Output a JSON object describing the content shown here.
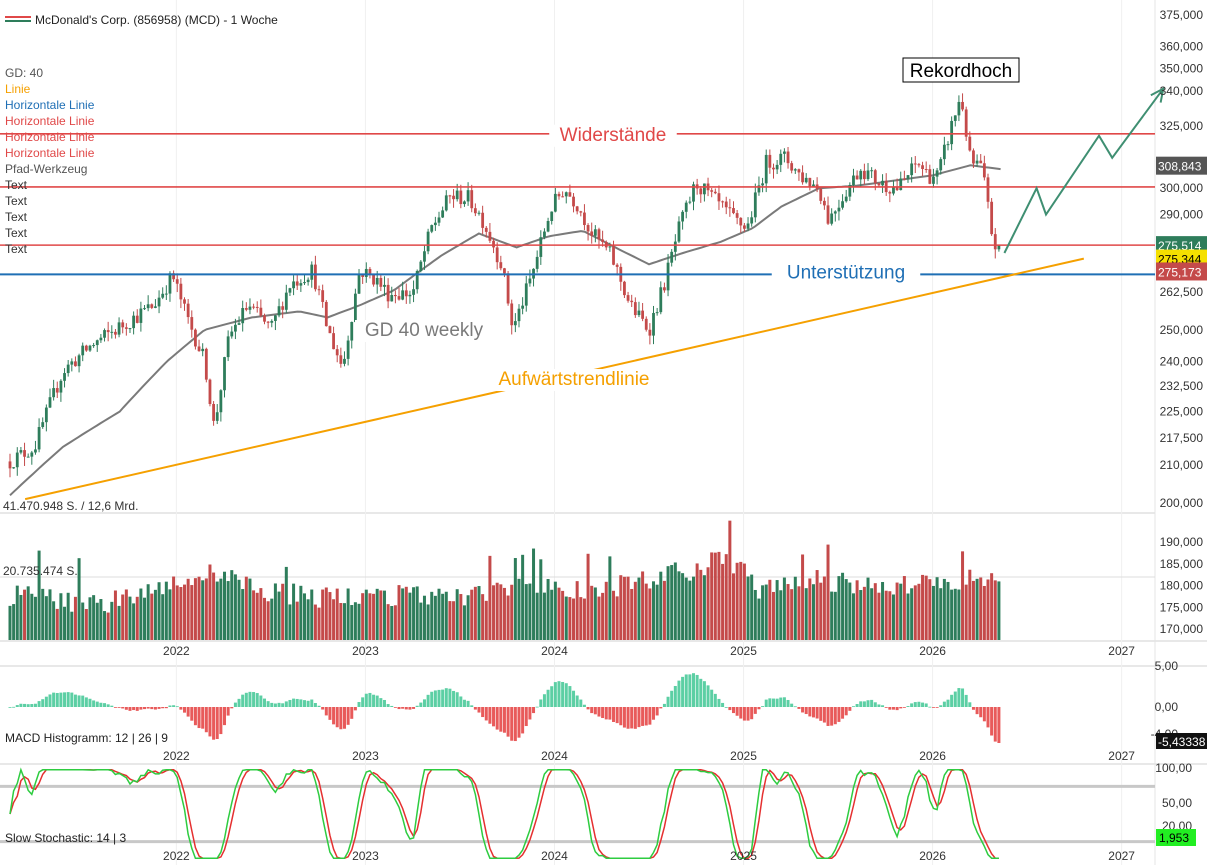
{
  "title": "McDonald's Corp. (856958) (MCD) - 1 Woche",
  "legend": [
    {
      "label": "GD: 40",
      "color": "#555555"
    },
    {
      "label": "Linie",
      "color": "#f5a000"
    },
    {
      "label": "Horizontale Linie",
      "color": "#1f6fb5"
    },
    {
      "label": "Horizontale Linie",
      "color": "#e04848"
    },
    {
      "label": "Horizontale Linie",
      "color": "#e04848"
    },
    {
      "label": "Horizontale Linie",
      "color": "#e04848"
    },
    {
      "label": "Pfad-Werkzeug",
      "color": "#555555"
    },
    {
      "label": "Text",
      "color": "#333333"
    },
    {
      "label": "Text",
      "color": "#333333"
    },
    {
      "label": "Text",
      "color": "#333333"
    },
    {
      "label": "Text",
      "color": "#333333"
    },
    {
      "label": "Text",
      "color": "#333333"
    }
  ],
  "colors": {
    "up": "#2e7d5b",
    "down": "#c44a4a",
    "ma": "#7a7a7a",
    "trend": "#f5a000",
    "support": "#1f6fb5",
    "resistance": "#e04848",
    "path": "#3f8f72",
    "hist_pos": "#5ccfa4",
    "hist_neg": "#e85a5a",
    "stoch_k": "#2ecc40",
    "stoch_d": "#e53030"
  },
  "chart_data": {
    "type": "candlestick",
    "title": "McDonald's Corp. (856958) (MCD) - 1 Woche",
    "x_ticks": [
      "2022",
      "2023",
      "2024",
      "2025",
      "2026",
      "2027"
    ],
    "x_range": [
      2021.12,
      2027.15
    ],
    "y_scale": "log",
    "y_ticks": [
      "375,000",
      "360,000",
      "350,000",
      "340,000",
      "325,000",
      "300,000",
      "290,000",
      "275,000",
      "262,500",
      "250,000",
      "240,000",
      "232,500",
      "225,000",
      "217,500",
      "210,000",
      "200,000"
    ],
    "y_range": [
      197,
      378
    ],
    "price_path": [
      [
        2021.12,
        211
      ],
      [
        2021.25,
        215
      ],
      [
        2021.4,
        237
      ],
      [
        2021.55,
        245
      ],
      [
        2021.88,
        258
      ],
      [
        2021.98,
        268
      ],
      [
        2022.05,
        255
      ],
      [
        2022.15,
        240
      ],
      [
        2022.2,
        220
      ],
      [
        2022.28,
        248
      ],
      [
        2022.38,
        258
      ],
      [
        2022.5,
        250
      ],
      [
        2022.6,
        265
      ],
      [
        2022.72,
        270
      ],
      [
        2022.8,
        250
      ],
      [
        2022.88,
        238
      ],
      [
        2022.97,
        270
      ],
      [
        2023.05,
        267
      ],
      [
        2023.12,
        262
      ],
      [
        2023.25,
        262
      ],
      [
        2023.35,
        285
      ],
      [
        2023.45,
        297
      ],
      [
        2023.55,
        296
      ],
      [
        2023.62,
        288
      ],
      [
        2023.72,
        272
      ],
      [
        2023.78,
        250
      ],
      [
        2023.88,
        268
      ],
      [
        2023.98,
        292
      ],
      [
        2024.05,
        300
      ],
      [
        2024.12,
        294
      ],
      [
        2024.2,
        283
      ],
      [
        2024.3,
        275
      ],
      [
        2024.4,
        258
      ],
      [
        2024.5,
        250
      ],
      [
        2024.58,
        265
      ],
      [
        2024.66,
        285
      ],
      [
        2024.75,
        302
      ],
      [
        2024.85,
        295
      ],
      [
        2024.95,
        288
      ],
      [
        2025.02,
        285
      ],
      [
        2025.12,
        310
      ],
      [
        2025.22,
        312
      ],
      [
        2025.3,
        305
      ],
      [
        2025.4,
        300
      ],
      [
        2025.45,
        288
      ],
      [
        2025.55,
        300
      ],
      [
        2025.62,
        308
      ],
      [
        2025.72,
        302
      ],
      [
        2025.82,
        300
      ],
      [
        2025.92,
        310
      ],
      [
        2025.98,
        305
      ],
      [
        2026.03,
        305
      ],
      [
        2026.1,
        325
      ],
      [
        2026.15,
        338
      ],
      [
        2026.2,
        310
      ],
      [
        2026.26,
        308
      ],
      [
        2026.32,
        280
      ],
      [
        2026.36,
        275.34
      ]
    ],
    "ma40_points": [
      [
        2021.12,
        202
      ],
      [
        2021.4,
        215
      ],
      [
        2021.7,
        225
      ],
      [
        2021.95,
        240
      ],
      [
        2022.15,
        250
      ],
      [
        2022.4,
        254
      ],
      [
        2022.65,
        256
      ],
      [
        2022.8,
        254
      ],
      [
        2022.97,
        258
      ],
      [
        2023.15,
        263
      ],
      [
        2023.4,
        275
      ],
      [
        2023.6,
        283
      ],
      [
        2023.8,
        278
      ],
      [
        2023.97,
        282
      ],
      [
        2024.15,
        284
      ],
      [
        2024.35,
        277
      ],
      [
        2024.5,
        272
      ],
      [
        2024.68,
        276
      ],
      [
        2024.88,
        280
      ],
      [
        2025.05,
        285
      ],
      [
        2025.2,
        293
      ],
      [
        2025.4,
        300
      ],
      [
        2025.6,
        301
      ],
      [
        2025.8,
        303
      ],
      [
        2026.0,
        305
      ],
      [
        2026.2,
        309
      ],
      [
        2026.36,
        307.5
      ]
    ],
    "volume_path": [
      [
        2021.12,
        175
      ],
      [
        2021.6,
        172
      ],
      [
        2021.9,
        178
      ],
      [
        2022.2,
        182
      ],
      [
        2022.5,
        176
      ],
      [
        2022.8,
        174
      ],
      [
        2023.1,
        175
      ],
      [
        2023.5,
        174
      ],
      [
        2023.9,
        178
      ],
      [
        2024.2,
        176
      ],
      [
        2024.5,
        180
      ],
      [
        2024.8,
        184
      ],
      [
        2024.9,
        188
      ],
      [
        2025.1,
        176
      ],
      [
        2025.3,
        180
      ],
      [
        2025.6,
        178
      ],
      [
        2025.9,
        178
      ],
      [
        2026.1,
        179
      ],
      [
        2026.36,
        182
      ]
    ],
    "volume_axis": {
      "ticks": [
        "190,000",
        "185,000",
        "180,000",
        "175,000",
        "170,000"
      ],
      "range": [
        168,
        196
      ]
    },
    "macd_axis": {
      "ticks": [
        "5,00",
        "0,00",
        "-4,00"
      ],
      "range": [
        -5.4,
        5.4
      ]
    },
    "stoch_axis": {
      "ticks": [
        "100,00",
        "50,00",
        "20,00"
      ],
      "range": [
        0,
        100
      ]
    },
    "price_labels": [
      {
        "label": "308,843",
        "value": 308.843,
        "bg": "#555555",
        "fg": "#ffffff"
      },
      {
        "label": "275,514",
        "value": 278.8,
        "bg": "#2e7d5b",
        "fg": "#ffffff"
      },
      {
        "label": "275,344",
        "value": 274.0,
        "bg": "#f5e000",
        "fg": "#000000"
      },
      {
        "label": "275,173",
        "value": 269.5,
        "bg": "#c44a4a",
        "fg": "#ffffff"
      }
    ],
    "support": 268.5,
    "resistances": [
      321.8,
      300.5,
      278.8
    ],
    "trendline": [
      [
        2021.2,
        201
      ],
      [
        2026.8,
        274
      ]
    ],
    "forecast_path": [
      [
        2026.38,
        276
      ],
      [
        2026.55,
        300
      ],
      [
        2026.6,
        290
      ],
      [
        2026.88,
        321
      ],
      [
        2026.95,
        312
      ],
      [
        2027.22,
        341
      ]
    ],
    "annotations": {
      "resistances": "Widerstände",
      "support": "Unterstützung",
      "trend": "Aufwärtstrendlinie",
      "ma": "GD 40 weekly",
      "record": "Rekordhoch"
    },
    "volume_label": "41.470.948 S. / 12,6 Mrd.",
    "volume_label2": "20.735.474 S.",
    "macd_label": "MACD Histogramm: 12 | 26 | 9",
    "macd_value": "-5,43338",
    "stoch_label": "Slow Stochastic: 14 | 3",
    "stoch_value": "1,953"
  }
}
